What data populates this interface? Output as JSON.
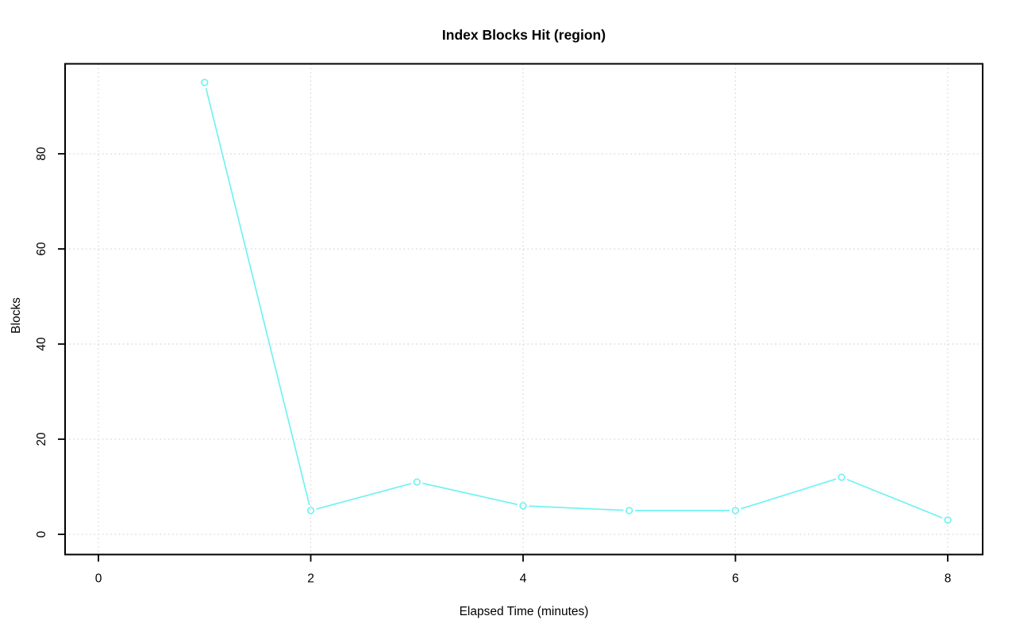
{
  "chart_data": {
    "type": "line",
    "title": "Index Blocks Hit (region)",
    "xlabel": "Elapsed Time (minutes)",
    "ylabel": "Blocks",
    "series": [
      {
        "name": "region",
        "x": [
          1,
          2,
          3,
          4,
          5,
          6,
          7,
          8
        ],
        "values": [
          95,
          5,
          11,
          6,
          5,
          5,
          12,
          3
        ],
        "color": "#71F2F2",
        "marker": "open-circle",
        "line_style": "solid-with-marker-gaps"
      }
    ],
    "xticks": [
      0,
      2,
      4,
      6,
      8
    ],
    "yticks": [
      0,
      20,
      40,
      60,
      80
    ],
    "xlim": [
      -0.31,
      8.34
    ],
    "ylim": [
      -4.3,
      98.8
    ],
    "grid": "dotted",
    "grid_color": "#D7D7D7",
    "axis_color": "#000000",
    "background_color": "#FFFFFF",
    "legend": "none"
  }
}
